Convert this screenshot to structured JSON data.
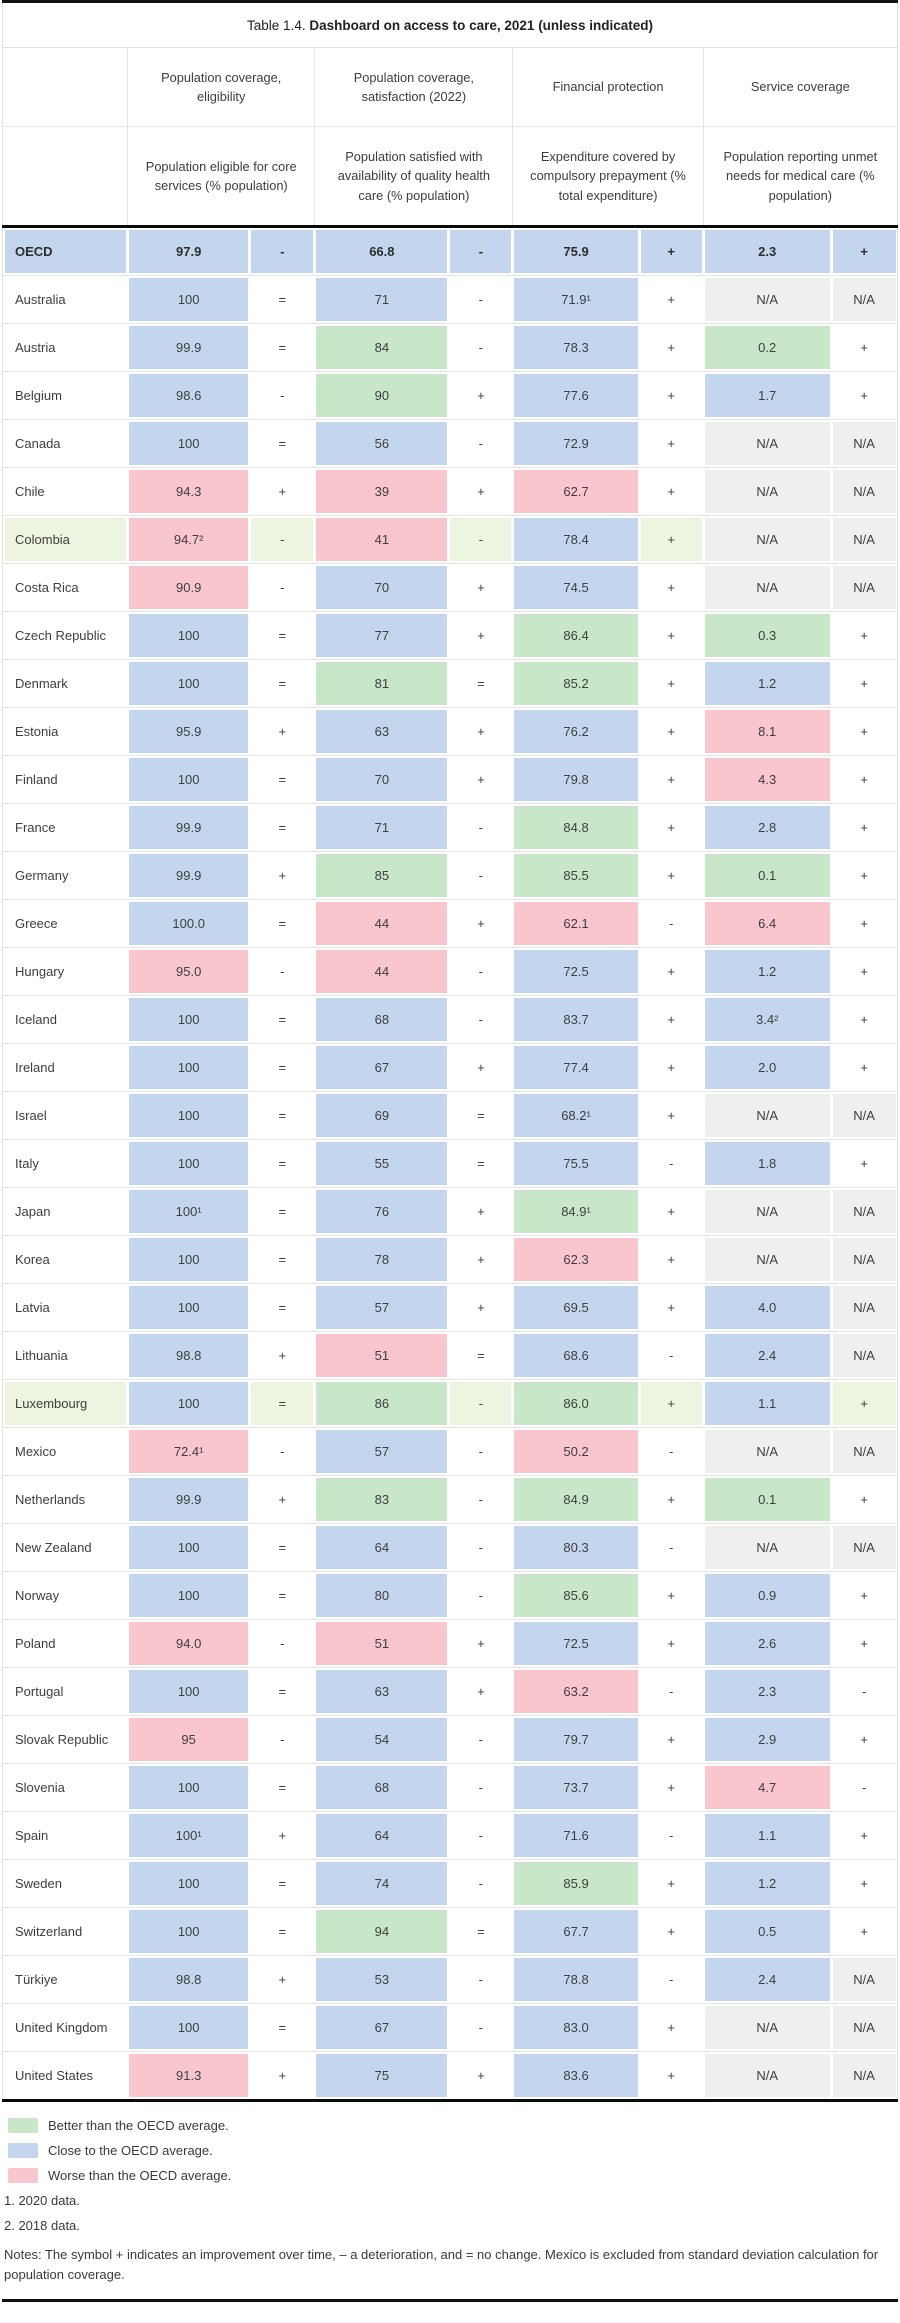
{
  "title": {
    "prefix": "Table 1.4. ",
    "main": "Dashboard on access to care, 2021 (unless indicated)"
  },
  "header": {
    "groups": [
      {
        "label": "Population coverage, eligibility",
        "sub": "Population eligible for core services (% population)"
      },
      {
        "label": "Population coverage, satisfaction (2022)",
        "sub": "Population satisfied with availability of quality health care (% population)"
      },
      {
        "label": "Financial protection",
        "sub": "Expenditure covered by compulsory prepayment (% total expenditure)"
      },
      {
        "label": "Service coverage",
        "sub": "Population reporting unmet needs for medical care (% population)"
      }
    ]
  },
  "colors": {
    "g": "#c8e7c9",
    "b": "#c3d6ee",
    "p": "#f9c6ce",
    "n": "#efefef",
    "hl": "#edf5e1"
  },
  "rows": [
    {
      "c": "OECD",
      "bold": true,
      "cells": [
        [
          "97.9",
          "b"
        ],
        [
          "-",
          "b"
        ],
        [
          "66.8",
          "b"
        ],
        [
          "-",
          "b"
        ],
        [
          "75.9",
          "b"
        ],
        [
          "+",
          "b"
        ],
        [
          "2.3",
          "b"
        ],
        [
          "+",
          "b"
        ]
      ]
    },
    {
      "c": "Australia",
      "cells": [
        [
          "100",
          "b"
        ],
        [
          "=",
          "w"
        ],
        [
          "71",
          "b"
        ],
        [
          "-",
          "w"
        ],
        [
          "71.9¹",
          "b"
        ],
        [
          "+",
          "w"
        ],
        [
          "N/A",
          "n"
        ],
        [
          "N/A",
          "n"
        ]
      ]
    },
    {
      "c": "Austria",
      "cells": [
        [
          "99.9",
          "b"
        ],
        [
          "=",
          "w"
        ],
        [
          "84",
          "g"
        ],
        [
          "-",
          "w"
        ],
        [
          "78.3",
          "b"
        ],
        [
          "+",
          "w"
        ],
        [
          "0.2",
          "g"
        ],
        [
          "+",
          "w"
        ]
      ]
    },
    {
      "c": "Belgium",
      "cells": [
        [
          "98.6",
          "b"
        ],
        [
          "-",
          "w"
        ],
        [
          "90",
          "g"
        ],
        [
          "+",
          "w"
        ],
        [
          "77.6",
          "b"
        ],
        [
          "+",
          "w"
        ],
        [
          "1.7",
          "b"
        ],
        [
          "+",
          "w"
        ]
      ]
    },
    {
      "c": "Canada",
      "cells": [
        [
          "100",
          "b"
        ],
        [
          "=",
          "w"
        ],
        [
          "56",
          "b"
        ],
        [
          "-",
          "w"
        ],
        [
          "72.9",
          "b"
        ],
        [
          "+",
          "w"
        ],
        [
          "N/A",
          "n"
        ],
        [
          "N/A",
          "n"
        ]
      ]
    },
    {
      "c": "Chile",
      "cells": [
        [
          "94.3",
          "p"
        ],
        [
          "+",
          "w"
        ],
        [
          "39",
          "p"
        ],
        [
          "+",
          "w"
        ],
        [
          "62.7",
          "p"
        ],
        [
          "+",
          "w"
        ],
        [
          "N/A",
          "n"
        ],
        [
          "N/A",
          "n"
        ]
      ]
    },
    {
      "c": "Colombia",
      "hl": true,
      "cells": [
        [
          "94.7²",
          "p"
        ],
        [
          "-",
          "w"
        ],
        [
          "41",
          "p"
        ],
        [
          "-",
          "w"
        ],
        [
          "78.4",
          "b"
        ],
        [
          "+",
          "w"
        ],
        [
          "N/A",
          "n"
        ],
        [
          "N/A",
          "n"
        ]
      ]
    },
    {
      "c": "Costa Rica",
      "cells": [
        [
          "90.9",
          "p"
        ],
        [
          "-",
          "w"
        ],
        [
          "70",
          "b"
        ],
        [
          "+",
          "w"
        ],
        [
          "74.5",
          "b"
        ],
        [
          "+",
          "w"
        ],
        [
          "N/A",
          "n"
        ],
        [
          "N/A",
          "n"
        ]
      ]
    },
    {
      "c": "Czech Republic",
      "cells": [
        [
          "100",
          "b"
        ],
        [
          "=",
          "w"
        ],
        [
          "77",
          "b"
        ],
        [
          "+",
          "w"
        ],
        [
          "86.4",
          "g"
        ],
        [
          "+",
          "w"
        ],
        [
          "0.3",
          "g"
        ],
        [
          "+",
          "w"
        ]
      ]
    },
    {
      "c": "Denmark",
      "cells": [
        [
          "100",
          "b"
        ],
        [
          "=",
          "w"
        ],
        [
          "81",
          "g"
        ],
        [
          "=",
          "w"
        ],
        [
          "85.2",
          "g"
        ],
        [
          "+",
          "w"
        ],
        [
          "1.2",
          "b"
        ],
        [
          "+",
          "w"
        ]
      ]
    },
    {
      "c": "Estonia",
      "cells": [
        [
          "95.9",
          "b"
        ],
        [
          "+",
          "w"
        ],
        [
          "63",
          "b"
        ],
        [
          "+",
          "w"
        ],
        [
          "76.2",
          "b"
        ],
        [
          "+",
          "w"
        ],
        [
          "8.1",
          "p"
        ],
        [
          "+",
          "w"
        ]
      ]
    },
    {
      "c": "Finland",
      "cells": [
        [
          "100",
          "b"
        ],
        [
          "=",
          "w"
        ],
        [
          "70",
          "b"
        ],
        [
          "+",
          "w"
        ],
        [
          "79.8",
          "b"
        ],
        [
          "+",
          "w"
        ],
        [
          "4.3",
          "p"
        ],
        [
          "+",
          "w"
        ]
      ]
    },
    {
      "c": "France",
      "cells": [
        [
          "99.9",
          "b"
        ],
        [
          "=",
          "w"
        ],
        [
          "71",
          "b"
        ],
        [
          "-",
          "w"
        ],
        [
          "84.8",
          "g"
        ],
        [
          "+",
          "w"
        ],
        [
          "2.8",
          "b"
        ],
        [
          "+",
          "w"
        ]
      ]
    },
    {
      "c": "Germany",
      "cells": [
        [
          "99.9",
          "b"
        ],
        [
          "+",
          "w"
        ],
        [
          "85",
          "g"
        ],
        [
          "-",
          "w"
        ],
        [
          "85.5",
          "g"
        ],
        [
          "+",
          "w"
        ],
        [
          "0.1",
          "g"
        ],
        [
          "+",
          "w"
        ]
      ]
    },
    {
      "c": "Greece",
      "cells": [
        [
          "100.0",
          "b"
        ],
        [
          "=",
          "w"
        ],
        [
          "44",
          "p"
        ],
        [
          "+",
          "w"
        ],
        [
          "62.1",
          "p"
        ],
        [
          "-",
          "w"
        ],
        [
          "6.4",
          "p"
        ],
        [
          "+",
          "w"
        ]
      ]
    },
    {
      "c": "Hungary",
      "cells": [
        [
          "95.0",
          "p"
        ],
        [
          "-",
          "w"
        ],
        [
          "44",
          "p"
        ],
        [
          "-",
          "w"
        ],
        [
          "72.5",
          "b"
        ],
        [
          "+",
          "w"
        ],
        [
          "1.2",
          "b"
        ],
        [
          "+",
          "w"
        ]
      ]
    },
    {
      "c": "Iceland",
      "cells": [
        [
          "100",
          "b"
        ],
        [
          "=",
          "w"
        ],
        [
          "68",
          "b"
        ],
        [
          "-",
          "w"
        ],
        [
          "83.7",
          "b"
        ],
        [
          "+",
          "w"
        ],
        [
          "3.4²",
          "b"
        ],
        [
          "+",
          "w"
        ]
      ]
    },
    {
      "c": "Ireland",
      "cells": [
        [
          "100",
          "b"
        ],
        [
          "=",
          "w"
        ],
        [
          "67",
          "b"
        ],
        [
          "+",
          "w"
        ],
        [
          "77.4",
          "b"
        ],
        [
          "+",
          "w"
        ],
        [
          "2.0",
          "b"
        ],
        [
          "+",
          "w"
        ]
      ]
    },
    {
      "c": "Israel",
      "cells": [
        [
          "100",
          "b"
        ],
        [
          "=",
          "w"
        ],
        [
          "69",
          "b"
        ],
        [
          "=",
          "w"
        ],
        [
          "68.2¹",
          "b"
        ],
        [
          "+",
          "w"
        ],
        [
          "N/A",
          "n"
        ],
        [
          "N/A",
          "n"
        ]
      ]
    },
    {
      "c": "Italy",
      "cells": [
        [
          "100",
          "b"
        ],
        [
          "=",
          "w"
        ],
        [
          "55",
          "b"
        ],
        [
          "=",
          "w"
        ],
        [
          "75.5",
          "b"
        ],
        [
          "-",
          "w"
        ],
        [
          "1.8",
          "b"
        ],
        [
          "+",
          "w"
        ]
      ]
    },
    {
      "c": "Japan",
      "cells": [
        [
          "100¹",
          "b"
        ],
        [
          "=",
          "w"
        ],
        [
          "76",
          "b"
        ],
        [
          "+",
          "w"
        ],
        [
          "84.9¹",
          "g"
        ],
        [
          "+",
          "w"
        ],
        [
          "N/A",
          "n"
        ],
        [
          "N/A",
          "n"
        ]
      ]
    },
    {
      "c": "Korea",
      "cells": [
        [
          "100",
          "b"
        ],
        [
          "=",
          "w"
        ],
        [
          "78",
          "b"
        ],
        [
          "+",
          "w"
        ],
        [
          "62.3",
          "p"
        ],
        [
          "+",
          "w"
        ],
        [
          "N/A",
          "n"
        ],
        [
          "N/A",
          "n"
        ]
      ]
    },
    {
      "c": "Latvia",
      "cells": [
        [
          "100",
          "b"
        ],
        [
          "=",
          "w"
        ],
        [
          "57",
          "b"
        ],
        [
          "+",
          "w"
        ],
        [
          "69.5",
          "b"
        ],
        [
          "+",
          "w"
        ],
        [
          "4.0",
          "b"
        ],
        [
          "N/A",
          "n"
        ]
      ]
    },
    {
      "c": "Lithuania",
      "cells": [
        [
          "98.8",
          "b"
        ],
        [
          "+",
          "w"
        ],
        [
          "51",
          "p"
        ],
        [
          "=",
          "w"
        ],
        [
          "68.6",
          "b"
        ],
        [
          "-",
          "w"
        ],
        [
          "2.4",
          "b"
        ],
        [
          "N/A",
          "n"
        ]
      ]
    },
    {
      "c": "Luxembourg",
      "hl": true,
      "cells": [
        [
          "100",
          "b"
        ],
        [
          "=",
          "w"
        ],
        [
          "86",
          "g"
        ],
        [
          "-",
          "w"
        ],
        [
          "86.0",
          "g"
        ],
        [
          "+",
          "w"
        ],
        [
          "1.1",
          "b"
        ],
        [
          "+",
          "w"
        ]
      ]
    },
    {
      "c": "Mexico",
      "cells": [
        [
          "72.4¹",
          "p"
        ],
        [
          "-",
          "w"
        ],
        [
          "57",
          "b"
        ],
        [
          "-",
          "w"
        ],
        [
          "50.2",
          "p"
        ],
        [
          "-",
          "w"
        ],
        [
          "N/A",
          "n"
        ],
        [
          "N/A",
          "n"
        ]
      ]
    },
    {
      "c": "Netherlands",
      "cells": [
        [
          "99.9",
          "b"
        ],
        [
          "+",
          "w"
        ],
        [
          "83",
          "g"
        ],
        [
          "-",
          "w"
        ],
        [
          "84.9",
          "g"
        ],
        [
          "+",
          "w"
        ],
        [
          "0.1",
          "g"
        ],
        [
          "+",
          "w"
        ]
      ]
    },
    {
      "c": "New Zealand",
      "cells": [
        [
          "100",
          "b"
        ],
        [
          "=",
          "w"
        ],
        [
          "64",
          "b"
        ],
        [
          "-",
          "w"
        ],
        [
          "80.3",
          "b"
        ],
        [
          "-",
          "w"
        ],
        [
          "N/A",
          "n"
        ],
        [
          "N/A",
          "n"
        ]
      ]
    },
    {
      "c": "Norway",
      "cells": [
        [
          "100",
          "b"
        ],
        [
          "=",
          "w"
        ],
        [
          "80",
          "b"
        ],
        [
          "-",
          "w"
        ],
        [
          "85.6",
          "g"
        ],
        [
          "+",
          "w"
        ],
        [
          "0.9",
          "b"
        ],
        [
          "+",
          "w"
        ]
      ]
    },
    {
      "c": "Poland",
      "cells": [
        [
          "94.0",
          "p"
        ],
        [
          "-",
          "w"
        ],
        [
          "51",
          "p"
        ],
        [
          "+",
          "w"
        ],
        [
          "72.5",
          "b"
        ],
        [
          "+",
          "w"
        ],
        [
          "2.6",
          "b"
        ],
        [
          "+",
          "w"
        ]
      ]
    },
    {
      "c": "Portugal",
      "cells": [
        [
          "100",
          "b"
        ],
        [
          "=",
          "w"
        ],
        [
          "63",
          "b"
        ],
        [
          "+",
          "w"
        ],
        [
          "63.2",
          "p"
        ],
        [
          "-",
          "w"
        ],
        [
          "2.3",
          "b"
        ],
        [
          "-",
          "w"
        ]
      ]
    },
    {
      "c": "Slovak Republic",
      "cells": [
        [
          "95",
          "p"
        ],
        [
          "-",
          "w"
        ],
        [
          "54",
          "b"
        ],
        [
          "-",
          "w"
        ],
        [
          "79.7",
          "b"
        ],
        [
          "+",
          "w"
        ],
        [
          "2.9",
          "b"
        ],
        [
          "+",
          "w"
        ]
      ]
    },
    {
      "c": "Slovenia",
      "cells": [
        [
          "100",
          "b"
        ],
        [
          "=",
          "w"
        ],
        [
          "68",
          "b"
        ],
        [
          "-",
          "w"
        ],
        [
          "73.7",
          "b"
        ],
        [
          "+",
          "w"
        ],
        [
          "4.7",
          "p"
        ],
        [
          "-",
          "w"
        ]
      ]
    },
    {
      "c": "Spain",
      "cells": [
        [
          "100¹",
          "b"
        ],
        [
          "+",
          "w"
        ],
        [
          "64",
          "b"
        ],
        [
          "-",
          "w"
        ],
        [
          "71.6",
          "b"
        ],
        [
          "-",
          "w"
        ],
        [
          "1.1",
          "b"
        ],
        [
          "+",
          "w"
        ]
      ]
    },
    {
      "c": "Sweden",
      "cells": [
        [
          "100",
          "b"
        ],
        [
          "=",
          "w"
        ],
        [
          "74",
          "b"
        ],
        [
          "-",
          "w"
        ],
        [
          "85.9",
          "g"
        ],
        [
          "+",
          "w"
        ],
        [
          "1.2",
          "b"
        ],
        [
          "+",
          "w"
        ]
      ]
    },
    {
      "c": "Switzerland",
      "cells": [
        [
          "100",
          "b"
        ],
        [
          "=",
          "w"
        ],
        [
          "94",
          "g"
        ],
        [
          "=",
          "w"
        ],
        [
          "67.7",
          "b"
        ],
        [
          "+",
          "w"
        ],
        [
          "0.5",
          "b"
        ],
        [
          "+",
          "w"
        ]
      ]
    },
    {
      "c": "Türkiye",
      "cells": [
        [
          "98.8",
          "b"
        ],
        [
          "+",
          "w"
        ],
        [
          "53",
          "b"
        ],
        [
          "-",
          "w"
        ],
        [
          "78.8",
          "b"
        ],
        [
          "-",
          "w"
        ],
        [
          "2.4",
          "b"
        ],
        [
          "N/A",
          "n"
        ]
      ]
    },
    {
      "c": "United Kingdom",
      "cells": [
        [
          "100",
          "b"
        ],
        [
          "=",
          "w"
        ],
        [
          "67",
          "b"
        ],
        [
          "-",
          "w"
        ],
        [
          "83.0",
          "b"
        ],
        [
          "+",
          "w"
        ],
        [
          "N/A",
          "n"
        ],
        [
          "N/A",
          "n"
        ]
      ]
    },
    {
      "c": "United States",
      "cells": [
        [
          "91.3",
          "p"
        ],
        [
          "+",
          "w"
        ],
        [
          "75",
          "b"
        ],
        [
          "+",
          "w"
        ],
        [
          "83.6",
          "b"
        ],
        [
          "+",
          "w"
        ],
        [
          "N/A",
          "n"
        ],
        [
          "N/A",
          "n"
        ]
      ]
    }
  ],
  "legend": [
    {
      "color": "g",
      "label": "Better than the OECD average."
    },
    {
      "color": "b",
      "label": "Close to the OECD average."
    },
    {
      "color": "p",
      "label": "Worse than the OECD average."
    }
  ],
  "footnotes": [
    "1. 2020 data.",
    "2. 2018 data."
  ],
  "notes": "Notes: The symbol + indicates an improvement over time, – a deterioration, and = no change. Mexico is excluded from standard deviation calculation for population coverage."
}
